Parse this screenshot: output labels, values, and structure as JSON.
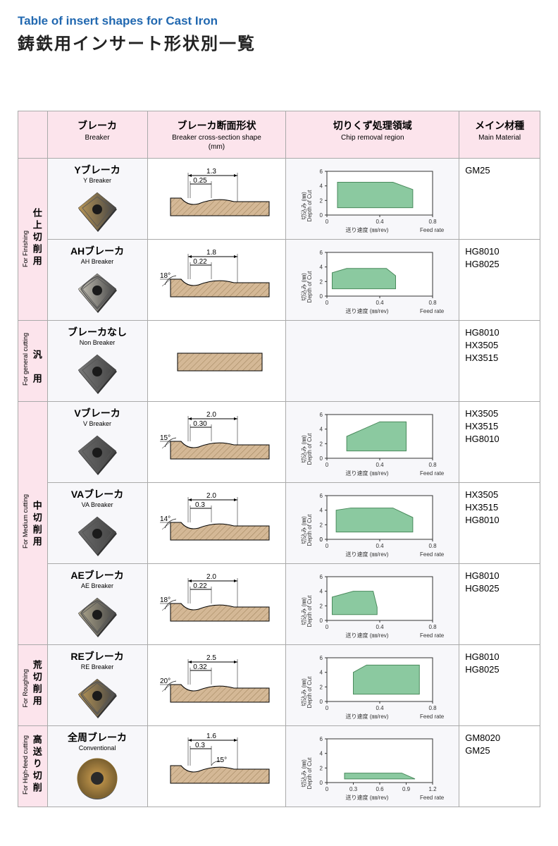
{
  "title_en": "Table of insert shapes for Cast Iron",
  "title_jp": "鋳鉄用インサート形状別一覧",
  "colors": {
    "header_bg": "#fce4ec",
    "row_bg": "#f7f7fa",
    "hatch": "#d4b896",
    "hatch_line": "#a0845c",
    "chart_fill": "#8bc9a0",
    "title_blue": "#2168b0",
    "border": "#aaaaaa"
  },
  "headers": {
    "breaker": {
      "jp": "ブレーカ",
      "en": "Breaker"
    },
    "cross": {
      "jp": "ブレーカ断面形状",
      "en": "Breaker cross-section shape",
      "unit": "(mm)"
    },
    "chip": {
      "jp": "切りくず処理領域",
      "en": "Chip removal region"
    },
    "material": {
      "jp": "メイン材種",
      "en": "Main Material"
    }
  },
  "chart_labels": {
    "y_jp": "切込み (㎜)",
    "y_en": "Depth of Cut",
    "x_jp": "送り速度 (㎜/rev)",
    "x_en": "Feed rate"
  },
  "categories": [
    {
      "jp": "仕上切削用",
      "en": "For Finishing",
      "rowspan": 2
    },
    {
      "jp": "汎　用",
      "en": "For general cutting",
      "rowspan": 1
    },
    {
      "jp": "中切削用",
      "en": "For Medium cutting",
      "rowspan": 3
    },
    {
      "jp": "荒切削用",
      "en": "For Roughing",
      "rowspan": 1
    },
    {
      "jp": "高送り切削",
      "en": "For High-feed cutting",
      "rowspan": 1
    }
  ],
  "rows": [
    {
      "breaker": {
        "jp": "Yブレーカ",
        "en": "Y Breaker"
      },
      "insert_color": "#b89656",
      "insert_shape": "rhombus",
      "cross": {
        "width": "1.3",
        "depth": "0.25",
        "angle": null,
        "profile": "y"
      },
      "chart": {
        "xmax": 0.8,
        "xticks": [
          0,
          0.4,
          0.8
        ],
        "ymax": 6,
        "yticks": [
          0,
          2,
          4,
          6
        ],
        "poly": [
          [
            0.08,
            1
          ],
          [
            0.08,
            4.5
          ],
          [
            0.5,
            4.5
          ],
          [
            0.65,
            3.5
          ],
          [
            0.65,
            1
          ]
        ]
      },
      "materials": [
        "GM25"
      ]
    },
    {
      "breaker": {
        "jp": "AHブレーカ",
        "en": "AH Breaker"
      },
      "insert_color": "#c8c4b8",
      "insert_shape": "rhombus-wave",
      "cross": {
        "width": "1.8",
        "depth": "0.22",
        "angle": "18°",
        "profile": "ah"
      },
      "chart": {
        "xmax": 0.8,
        "xticks": [
          0,
          0.4,
          0.8
        ],
        "ymax": 6,
        "yticks": [
          0,
          2,
          4,
          6
        ],
        "poly": [
          [
            0.04,
            1
          ],
          [
            0.04,
            3.2
          ],
          [
            0.15,
            3.8
          ],
          [
            0.45,
            3.8
          ],
          [
            0.52,
            2.8
          ],
          [
            0.52,
            1
          ]
        ]
      },
      "materials": [
        "HG8010",
        "HG8025"
      ]
    },
    {
      "breaker": {
        "jp": "ブレーカなし",
        "en": "Non Breaker"
      },
      "insert_color": "#787878",
      "insert_shape": "rhombus",
      "cross": {
        "width": null,
        "depth": null,
        "angle": null,
        "profile": "flat"
      },
      "chart": null,
      "materials": [
        "HG8010",
        "HX3505",
        "HX3515"
      ]
    },
    {
      "breaker": {
        "jp": "Vブレーカ",
        "en": "V Breaker"
      },
      "insert_color": "#6a6a6a",
      "insert_shape": "rhombus",
      "cross": {
        "width": "2.0",
        "depth": "0.30",
        "angle": "15°",
        "profile": "v"
      },
      "chart": {
        "xmax": 0.8,
        "xticks": [
          0,
          0.4,
          0.8
        ],
        "ymax": 6,
        "yticks": [
          0,
          2,
          4,
          6
        ],
        "poly": [
          [
            0.15,
            1
          ],
          [
            0.15,
            3
          ],
          [
            0.4,
            5
          ],
          [
            0.6,
            5
          ],
          [
            0.6,
            1
          ]
        ]
      },
      "materials": [
        "HX3505",
        "HX3515",
        "HG8010"
      ]
    },
    {
      "breaker": {
        "jp": "VAブレーカ",
        "en": "VA Breaker"
      },
      "insert_color": "#6a6a6a",
      "insert_shape": "rhombus",
      "cross": {
        "width": "2.0",
        "depth": "0.3",
        "angle": "14°",
        "profile": "va"
      },
      "chart": {
        "xmax": 0.8,
        "xticks": [
          0,
          0.4,
          0.8
        ],
        "ymax": 6,
        "yticks": [
          0,
          2,
          4,
          0,
          6
        ],
        "poly": [
          [
            0.07,
            1
          ],
          [
            0.07,
            4
          ],
          [
            0.18,
            4.3
          ],
          [
            0.5,
            4.3
          ],
          [
            0.65,
            3
          ],
          [
            0.65,
            1
          ]
        ]
      },
      "materials": [
        "HX3505",
        "HX3515",
        "HG8010"
      ]
    },
    {
      "breaker": {
        "jp": "AEブレーカ",
        "en": "AE Breaker"
      },
      "insert_color": "#b0a88e",
      "insert_shape": "rhombus-wave",
      "cross": {
        "width": "2.0",
        "depth": "0.22",
        "angle": "18°",
        "profile": "ae"
      },
      "chart": {
        "xmax": 0.8,
        "xticks": [
          0,
          0.4,
          0.8
        ],
        "ymax": 6,
        "yticks": [
          0,
          2,
          4,
          6
        ],
        "poly": [
          [
            0.04,
            0.8
          ],
          [
            0.04,
            3.2
          ],
          [
            0.2,
            4
          ],
          [
            0.35,
            4
          ],
          [
            0.38,
            1.8
          ],
          [
            0.38,
            0.8
          ]
        ]
      },
      "materials": [
        "HG8010",
        "HG8025"
      ]
    },
    {
      "breaker": {
        "jp": "REブレーカ",
        "en": "RE Breaker"
      },
      "insert_color": "#b89656",
      "insert_shape": "rhombus-wave",
      "cross": {
        "width": "2.5",
        "depth": "0.32",
        "angle": "20°",
        "profile": "re"
      },
      "chart": {
        "xmax": 0.8,
        "xticks": [
          0,
          0.4,
          0.8
        ],
        "ymax": 6,
        "yticks": [
          0,
          2,
          4,
          6
        ],
        "poly": [
          [
            0.2,
            1
          ],
          [
            0.2,
            4
          ],
          [
            0.3,
            5
          ],
          [
            0.7,
            5
          ],
          [
            0.7,
            1
          ]
        ]
      },
      "materials": [
        "HG8010",
        "HG8025"
      ]
    },
    {
      "breaker": {
        "jp": "全周ブレーカ",
        "en": "Conventional"
      },
      "insert_color": "#d0a050",
      "insert_shape": "round",
      "cross": {
        "width": "1.6",
        "depth": "0.3",
        "angle": "15°",
        "profile": "conv"
      },
      "chart": {
        "xmax": 1.2,
        "xticks": [
          0,
          0.3,
          0.6,
          0.9,
          1.2
        ],
        "ymax": 6,
        "yticks": [
          0,
          2,
          4,
          6
        ],
        "poly": [
          [
            0.2,
            0.5
          ],
          [
            0.2,
            1.3
          ],
          [
            0.85,
            1.3
          ],
          [
            1.0,
            0.5
          ]
        ]
      },
      "materials": [
        "GM8020",
        "GM25"
      ]
    }
  ]
}
